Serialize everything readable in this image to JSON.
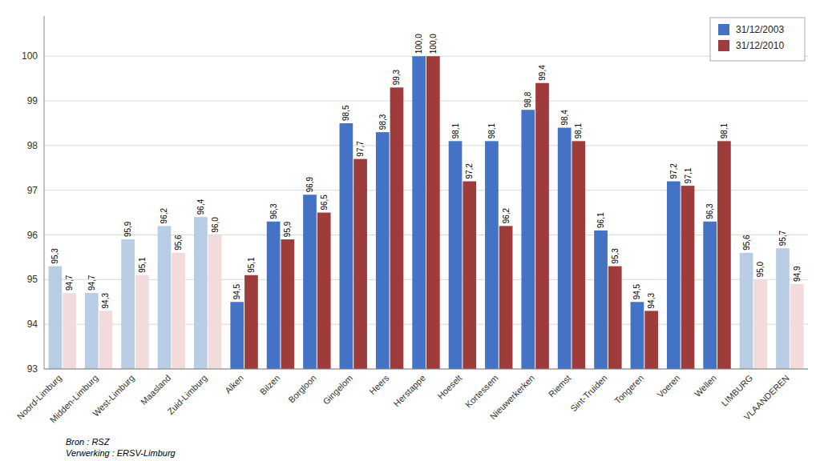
{
  "chart_data": {
    "type": "bar",
    "categories": [
      "Noord-Limburg",
      "Midden-Limburg",
      "West-Limburg",
      "Maasland",
      "Zuid-Limburg",
      "Alken",
      "Bilzen",
      "Borgloon",
      "Gingelom",
      "Heers",
      "Herstappe",
      "Hoeselt",
      "Kortessem",
      "Nieuwerkerken",
      "Riemst",
      "Sint-Truiden",
      "Tongeren",
      "Voeren",
      "Wellen",
      "LIMBURG",
      "VLAANDEREN"
    ],
    "series": [
      {
        "name": "31/12/2003",
        "color": "#4472C4",
        "colors": [
          "#B8CCE4",
          "#B8CCE4",
          "#B8CCE4",
          "#B8CCE4",
          "#B8CCE4",
          "#4472C4",
          "#4472C4",
          "#4472C4",
          "#4472C4",
          "#4472C4",
          "#4472C4",
          "#4472C4",
          "#4472C4",
          "#4472C4",
          "#4472C4",
          "#4472C4",
          "#4472C4",
          "#4472C4",
          "#4472C4",
          "#B8CCE4",
          "#B8CCE4"
        ],
        "values": [
          95.3,
          94.7,
          95.9,
          96.2,
          96.4,
          94.5,
          96.3,
          96.9,
          98.5,
          98.3,
          100.0,
          98.1,
          98.1,
          98.8,
          98.4,
          96.1,
          94.5,
          97.2,
          96.3,
          95.6,
          95.7
        ],
        "value_labels": [
          "95,3",
          "94,7",
          "95,9",
          "96,2",
          "96,4",
          "94,5",
          "96,3",
          "96,9",
          "98,5",
          "98,3",
          "100,0",
          "98,1",
          "98,1",
          "98,8",
          "98,4",
          "96,1",
          "94,5",
          "97,2",
          "96,3",
          "95,6",
          "95,7"
        ]
      },
      {
        "name": "31/12/2010",
        "color": "#9E3B3B",
        "colors": [
          "#F2DCDB",
          "#F2DCDB",
          "#F2DCDB",
          "#F2DCDB",
          "#F2DCDB",
          "#9E3B3B",
          "#9E3B3B",
          "#9E3B3B",
          "#9E3B3B",
          "#9E3B3B",
          "#9E3B3B",
          "#9E3B3B",
          "#9E3B3B",
          "#9E3B3B",
          "#9E3B3B",
          "#9E3B3B",
          "#9E3B3B",
          "#9E3B3B",
          "#9E3B3B",
          "#F2DCDB",
          "#F2DCDB"
        ],
        "values": [
          94.7,
          94.3,
          95.1,
          95.6,
          96.0,
          95.1,
          95.9,
          96.5,
          97.7,
          99.3,
          100.0,
          97.2,
          96.2,
          99.4,
          98.1,
          95.3,
          94.3,
          97.1,
          98.1,
          95.0,
          94.9
        ],
        "value_labels": [
          "94,7",
          "94,3",
          "95,1",
          "95,6",
          "96,0",
          "95,1",
          "95,9",
          "96,5",
          "97,7",
          "99,3",
          "100,0",
          "97,2",
          "96,2",
          "99,4",
          "98,1",
          "95,3",
          "94,3",
          "97,1",
          "98,1",
          "95,0",
          "94,9"
        ]
      }
    ],
    "ylim": [
      93,
      100.9
    ],
    "yticks": [
      93,
      94,
      95,
      96,
      97,
      98,
      99,
      100
    ],
    "grid": true,
    "legend": "upper right",
    "data_labels": true,
    "annotations": [
      "Bron : RSZ\nVerwerking : ERSV-Limburg"
    ]
  }
}
